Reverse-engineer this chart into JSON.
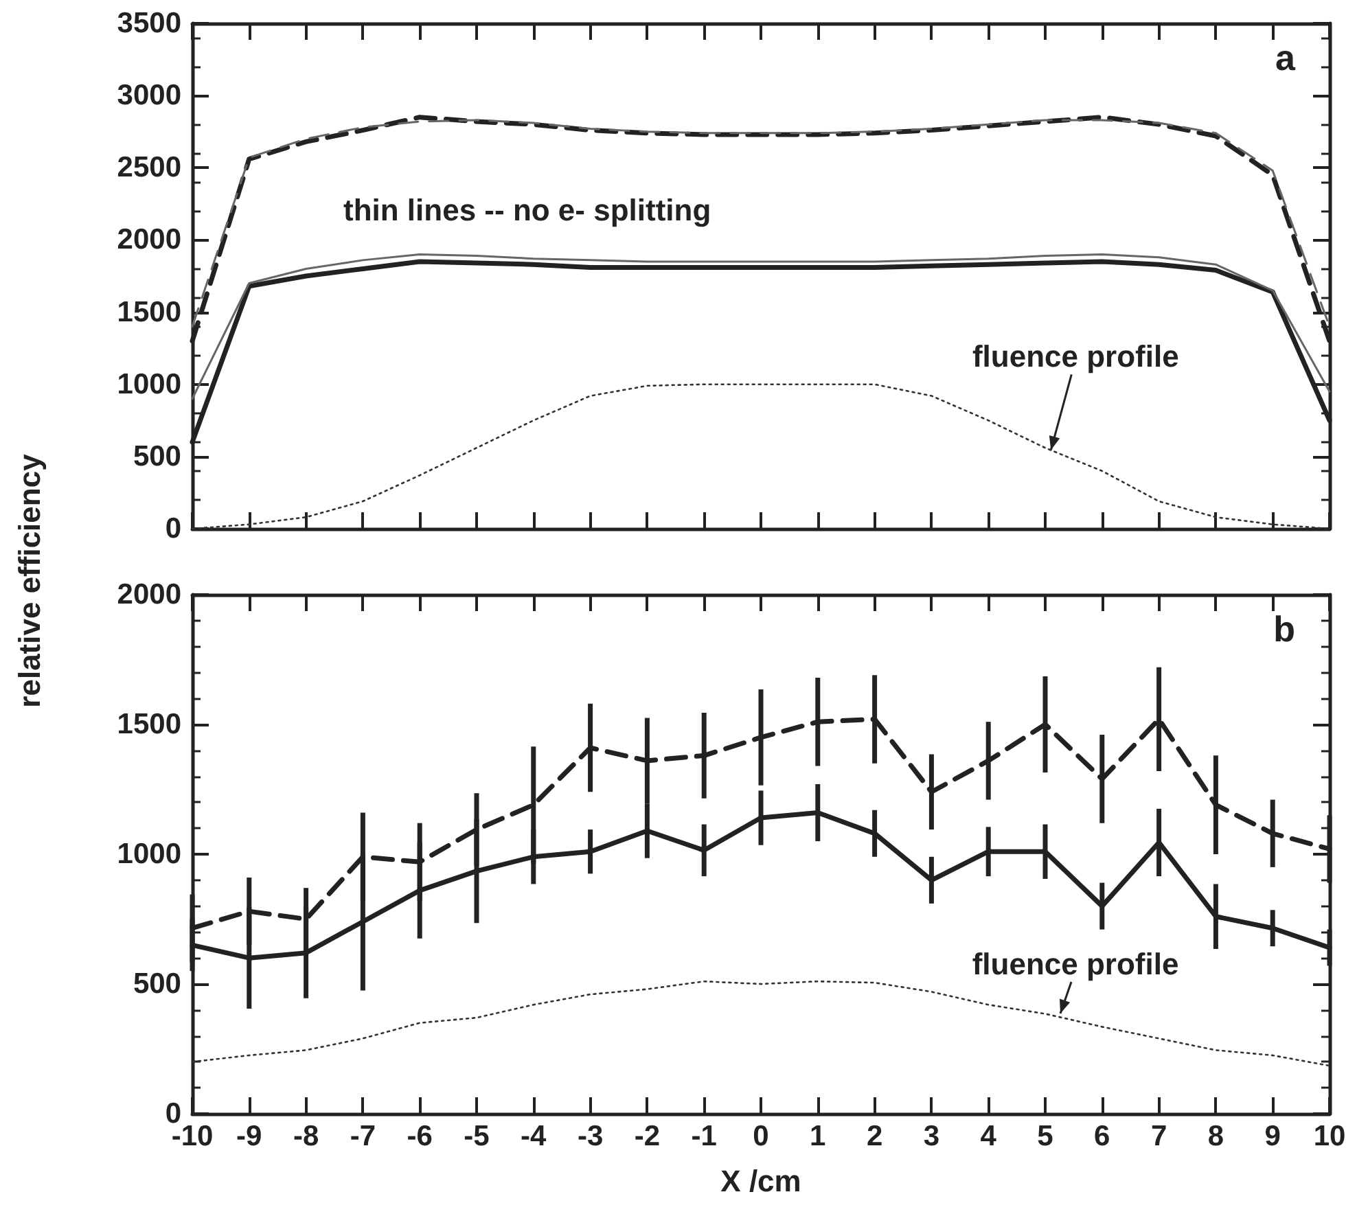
{
  "chart_data": [
    {
      "type": "line",
      "xlim": [
        -10,
        10
      ],
      "xticks": [
        {
          "value": -10,
          "label": null
        },
        {
          "value": -9,
          "label": null
        },
        {
          "value": -8,
          "label": null
        },
        {
          "value": -7,
          "label": null
        },
        {
          "value": -6,
          "label": null
        },
        {
          "value": -5,
          "label": null
        },
        {
          "value": -4,
          "label": null
        },
        {
          "value": -3,
          "label": null
        },
        {
          "value": -2,
          "label": null
        },
        {
          "value": -1,
          "label": null
        },
        {
          "value": 0,
          "label": null
        },
        {
          "value": 1,
          "label": null
        },
        {
          "value": 2,
          "label": null
        },
        {
          "value": 3,
          "label": null
        },
        {
          "value": 4,
          "label": null
        },
        {
          "value": 5,
          "label": null
        },
        {
          "value": 6,
          "label": null
        },
        {
          "value": 7,
          "label": null
        },
        {
          "value": 8,
          "label": null
        },
        {
          "value": 9,
          "label": null
        },
        {
          "value": 10,
          "label": null
        }
      ],
      "ylim": [
        0,
        3500
      ],
      "yticks": [
        0,
        500,
        1000,
        1500,
        2000,
        2500,
        3000,
        3500
      ],
      "ylabel": "relative efficiency",
      "tick_labels": "y",
      "marker": "none",
      "x": [
        -10,
        -9,
        -8,
        -7,
        -6,
        -5,
        -4,
        -3,
        -2,
        -1,
        0,
        1,
        2,
        3,
        4,
        5,
        6,
        7,
        8,
        9,
        10
      ],
      "series": [
        {
          "color": "#222222",
          "line_style": "solid",
          "values": [
            600,
            1680,
            1750,
            1800,
            1850,
            1840,
            1830,
            1810,
            1810,
            1810,
            1810,
            1810,
            1810,
            1820,
            1830,
            1840,
            1850,
            1830,
            1790,
            1640,
            750
          ]
        },
        {
          "color": "#666666",
          "line_style": "solid",
          "values": [
            900,
            1700,
            1800,
            1860,
            1900,
            1890,
            1870,
            1860,
            1850,
            1850,
            1850,
            1850,
            1850,
            1860,
            1870,
            1890,
            1900,
            1880,
            1830,
            1650,
            950
          ]
        },
        {
          "color": "#222222",
          "line_style": "dashed",
          "values": [
            1300,
            2560,
            2680,
            2760,
            2850,
            2820,
            2800,
            2760,
            2740,
            2730,
            2730,
            2730,
            2740,
            2760,
            2790,
            2820,
            2850,
            2800,
            2720,
            2450,
            1300
          ]
        },
        {
          "color": "#666666",
          "line_style": "dashed",
          "values": [
            1400,
            2570,
            2700,
            2780,
            2820,
            2830,
            2810,
            2770,
            2750,
            2740,
            2740,
            2740,
            2750,
            2770,
            2800,
            2830,
            2830,
            2810,
            2740,
            2480,
            1400
          ]
        },
        {
          "color": "#333333",
          "line_style": "dotted",
          "values": [
            0,
            30,
            80,
            190,
            370,
            560,
            750,
            920,
            990,
            1000,
            1000,
            1000,
            1000,
            920,
            750,
            560,
            400,
            190,
            80,
            30,
            0
          ]
        }
      ],
      "annotations": [
        "a",
        "thin lines -- no e- splitting",
        {
          "text": "fluence profile",
          "x": 5.1,
          "y": 545
        }
      ]
    },
    {
      "type": "line",
      "xlim": [
        -10,
        10
      ],
      "xticks": [
        -10,
        -9,
        -8,
        -7,
        -6,
        -5,
        -4,
        -3,
        -2,
        -1,
        0,
        1,
        2,
        3,
        4,
        5,
        6,
        7,
        8,
        9,
        10
      ],
      "ylim": [
        0,
        2000
      ],
      "yticks": [
        0,
        500,
        1000,
        1500,
        2000
      ],
      "xlabel": "X /cm",
      "marker": "none",
      "x": [
        -10,
        -9,
        -8,
        -7,
        -6,
        -5,
        -4,
        -3,
        -2,
        -1,
        0,
        1,
        2,
        3,
        4,
        5,
        6,
        7,
        8,
        9,
        10
      ],
      "series": [
        {
          "color": "#222222",
          "line_style": "solid",
          "values": [
            650,
            600,
            620,
            740,
            860,
            935,
            990,
            1010,
            1090,
            1015,
            1140,
            1160,
            1080,
            900,
            1010,
            1010,
            800,
            1045,
            760,
            715,
            640
          ],
          "errors": [
            100,
            195,
            175,
            265,
            185,
            200,
            105,
            85,
            105,
            100,
            105,
            110,
            90,
            90,
            95,
            105,
            90,
            130,
            125,
            70,
            70
          ]
        },
        {
          "color": "#222222",
          "line_style": "dashed",
          "values": [
            715,
            780,
            750,
            990,
            970,
            1095,
            1190,
            1410,
            1360,
            1380,
            1450,
            1510,
            1520,
            1240,
            1360,
            1500,
            1290,
            1520,
            1190,
            1080,
            1020
          ],
          "errors": [
            130,
            130,
            120,
            170,
            150,
            140,
            225,
            170,
            165,
            165,
            185,
            170,
            170,
            145,
            150,
            185,
            170,
            200,
            190,
            130,
            130
          ]
        },
        {
          "color": "#333333",
          "line_style": "dotted",
          "values": [
            200,
            225,
            245,
            290,
            350,
            370,
            420,
            460,
            480,
            510,
            500,
            510,
            505,
            470,
            420,
            385,
            335,
            290,
            245,
            225,
            185
          ]
        }
      ],
      "annotations": [
        "b",
        "fluence profile"
      ]
    }
  ]
}
